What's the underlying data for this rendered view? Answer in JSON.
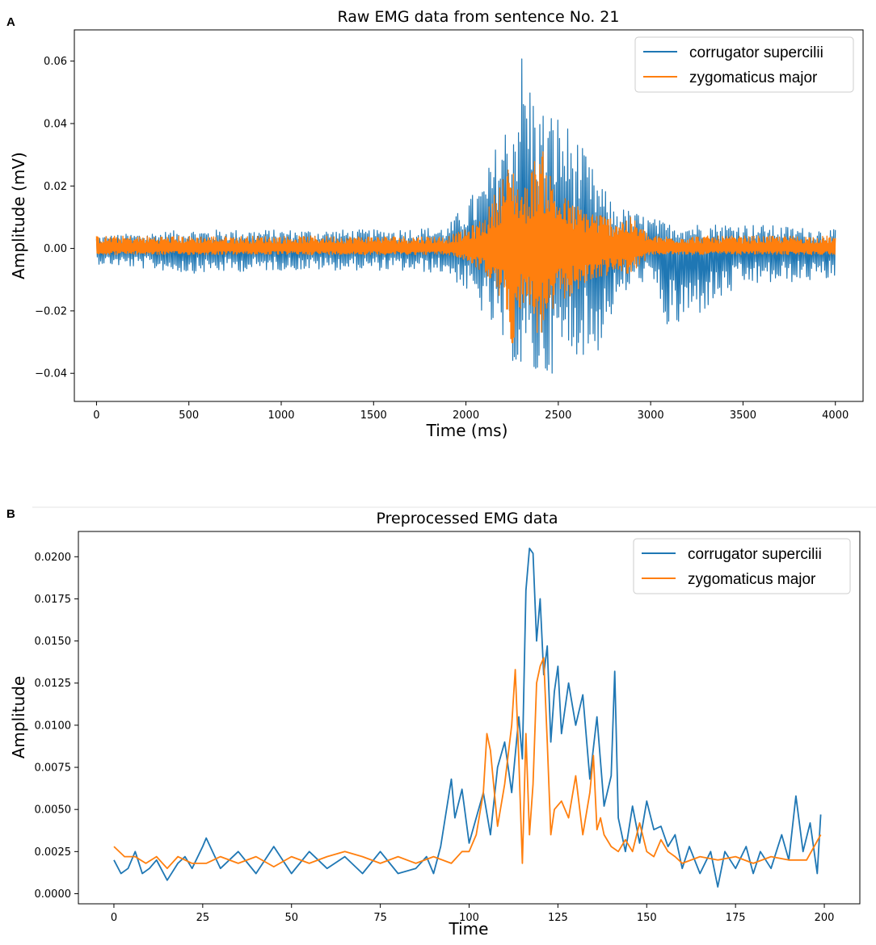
{
  "chart_data": [
    {
      "panel": "A",
      "type": "line",
      "title": "Raw EMG data from sentence No. 21",
      "xlabel": "Time (ms)",
      "ylabel": "Amplitude (mV)",
      "xlim": [
        -120,
        4150
      ],
      "ylim": [
        -0.049,
        0.07
      ],
      "xticks": [
        0,
        500,
        1000,
        1500,
        2000,
        2500,
        3000,
        3500,
        4000
      ],
      "xtick_labels": [
        "0",
        "500",
        "1000",
        "1500",
        "2000",
        "2500",
        "3000",
        "3500",
        "4000"
      ],
      "yticks": [
        -0.04,
        -0.02,
        0.0,
        0.02,
        0.04,
        0.06
      ],
      "ytick_labels": [
        "−0.04",
        "−0.02",
        "0.00",
        "0.02",
        "0.04",
        "0.06"
      ],
      "grid": false,
      "legend": "top-right",
      "colors": {
        "corrugator": "#1f77b4",
        "zygomaticus": "#ff7f0e"
      },
      "series": [
        {
          "name": "corrugator supercilii",
          "color": "#1f77b4",
          "x": [
            0,
            500,
            1000,
            1500,
            1900,
            2000,
            2100,
            2200,
            2250,
            2300,
            2320,
            2400,
            2500,
            2600,
            2700,
            2800,
            2900,
            3000,
            3100,
            3500,
            4000
          ],
          "upper": [
            0.004,
            0.006,
            0.006,
            0.006,
            0.007,
            0.015,
            0.022,
            0.04,
            0.042,
            0.065,
            0.06,
            0.046,
            0.044,
            0.036,
            0.024,
            0.014,
            0.012,
            0.01,
            0.008,
            0.008,
            0.006
          ],
          "lower": [
            -0.005,
            -0.008,
            -0.007,
            -0.007,
            -0.008,
            -0.014,
            -0.022,
            -0.032,
            -0.036,
            -0.042,
            -0.04,
            -0.044,
            -0.038,
            -0.034,
            -0.036,
            -0.02,
            -0.012,
            -0.01,
            -0.028,
            -0.012,
            -0.01
          ]
        },
        {
          "name": "zygomaticus major",
          "color": "#ff7f0e",
          "x": [
            0,
            500,
            1000,
            1500,
            1900,
            2000,
            2100,
            2200,
            2250,
            2300,
            2320,
            2400,
            2500,
            2600,
            2700,
            2800,
            2900,
            3000,
            3100,
            3500,
            4000
          ],
          "upper": [
            0.004,
            0.004,
            0.004,
            0.004,
            0.004,
            0.006,
            0.01,
            0.024,
            0.028,
            0.02,
            0.02,
            0.034,
            0.018,
            0.014,
            0.012,
            0.01,
            0.01,
            0.004,
            0.004,
            0.004,
            0.004
          ],
          "lower": [
            -0.002,
            -0.002,
            -0.002,
            -0.002,
            -0.002,
            -0.004,
            -0.008,
            -0.018,
            -0.032,
            -0.018,
            -0.018,
            -0.03,
            -0.018,
            -0.014,
            -0.01,
            -0.008,
            -0.008,
            -0.002,
            -0.002,
            -0.002,
            -0.002
          ]
        }
      ]
    },
    {
      "panel": "B",
      "type": "line",
      "title": "Preprocessed EMG data",
      "xlabel": "Time",
      "ylabel": "Amplitude",
      "xlim": [
        -10,
        210
      ],
      "ylim": [
        -0.0006,
        0.0215
      ],
      "xticks": [
        0,
        25,
        50,
        75,
        100,
        125,
        150,
        175,
        200
      ],
      "xtick_labels": [
        "0",
        "25",
        "50",
        "75",
        "100",
        "125",
        "150",
        "175",
        "200"
      ],
      "yticks": [
        0.0,
        0.0025,
        0.005,
        0.0075,
        0.01,
        0.0125,
        0.015,
        0.0175,
        0.02
      ],
      "ytick_labels": [
        "0.0000",
        "0.0025",
        "0.0050",
        "0.0075",
        "0.0100",
        "0.0125",
        "0.0150",
        "0.0175",
        "0.0200"
      ],
      "grid": false,
      "legend": "top-right",
      "series": [
        {
          "name": "corrugator supercilii",
          "color": "#1f77b4",
          "x": [
            0,
            2,
            4,
            6,
            8,
            10,
            12,
            15,
            18,
            20,
            22,
            25,
            26,
            30,
            35,
            40,
            45,
            50,
            55,
            60,
            65,
            70,
            75,
            80,
            85,
            88,
            90,
            92,
            95,
            96,
            98,
            100,
            102,
            104,
            106,
            108,
            110,
            112,
            114,
            115,
            116,
            117,
            118,
            119,
            120,
            121,
            122,
            123,
            124,
            125,
            126,
            128,
            130,
            132,
            134,
            136,
            138,
            140,
            141,
            142,
            144,
            146,
            148,
            150,
            152,
            154,
            156,
            158,
            160,
            162,
            165,
            168,
            170,
            172,
            175,
            178,
            180,
            182,
            185,
            188,
            190,
            192,
            194,
            196,
            198,
            199
          ],
          "y": [
            0.002,
            0.0012,
            0.0015,
            0.0025,
            0.0012,
            0.0015,
            0.002,
            0.0008,
            0.0018,
            0.0022,
            0.0015,
            0.0028,
            0.0033,
            0.0015,
            0.0025,
            0.0012,
            0.0028,
            0.0012,
            0.0025,
            0.0015,
            0.0022,
            0.0012,
            0.0025,
            0.0012,
            0.0015,
            0.0022,
            0.0012,
            0.0028,
            0.0068,
            0.0045,
            0.0062,
            0.003,
            0.0045,
            0.006,
            0.0035,
            0.0075,
            0.009,
            0.006,
            0.0105,
            0.008,
            0.018,
            0.0205,
            0.0202,
            0.015,
            0.0175,
            0.013,
            0.0147,
            0.009,
            0.012,
            0.0135,
            0.0095,
            0.0125,
            0.01,
            0.0118,
            0.0068,
            0.0105,
            0.0052,
            0.007,
            0.0132,
            0.0045,
            0.0025,
            0.0052,
            0.003,
            0.0055,
            0.0038,
            0.004,
            0.0028,
            0.0035,
            0.0015,
            0.0028,
            0.0012,
            0.0025,
            0.0004,
            0.0025,
            0.0015,
            0.0028,
            0.0012,
            0.0025,
            0.0015,
            0.0035,
            0.002,
            0.0058,
            0.0025,
            0.0042,
            0.0012,
            0.0047
          ]
        },
        {
          "name": "zygomaticus major",
          "color": "#ff7f0e",
          "x": [
            0,
            3,
            6,
            9,
            12,
            15,
            18,
            22,
            26,
            30,
            35,
            40,
            45,
            50,
            55,
            60,
            65,
            70,
            75,
            80,
            85,
            90,
            95,
            98,
            100,
            102,
            104,
            105,
            106,
            108,
            110,
            112,
            113,
            114,
            115,
            116,
            117,
            118,
            119,
            120,
            121,
            122,
            123,
            124,
            126,
            128,
            130,
            132,
            134,
            135,
            136,
            137,
            138,
            140,
            142,
            144,
            146,
            148,
            150,
            152,
            154,
            156,
            158,
            160,
            165,
            170,
            175,
            180,
            185,
            190,
            195,
            199
          ],
          "y": [
            0.0028,
            0.0022,
            0.0022,
            0.0018,
            0.0022,
            0.0015,
            0.0022,
            0.0018,
            0.0018,
            0.0022,
            0.0018,
            0.0022,
            0.0016,
            0.0022,
            0.0018,
            0.0022,
            0.0025,
            0.0022,
            0.0018,
            0.0022,
            0.0018,
            0.0022,
            0.0018,
            0.0025,
            0.0025,
            0.0035,
            0.006,
            0.0095,
            0.0085,
            0.004,
            0.0065,
            0.01,
            0.0133,
            0.008,
            0.0018,
            0.0095,
            0.0035,
            0.0065,
            0.0125,
            0.0135,
            0.014,
            0.009,
            0.0035,
            0.005,
            0.0055,
            0.0045,
            0.007,
            0.0035,
            0.006,
            0.0082,
            0.0038,
            0.0045,
            0.0035,
            0.0028,
            0.0025,
            0.0032,
            0.0025,
            0.0042,
            0.0025,
            0.0022,
            0.0032,
            0.0025,
            0.0022,
            0.0018,
            0.0022,
            0.002,
            0.0022,
            0.0018,
            0.0022,
            0.002,
            0.002,
            0.0035
          ]
        }
      ]
    }
  ]
}
